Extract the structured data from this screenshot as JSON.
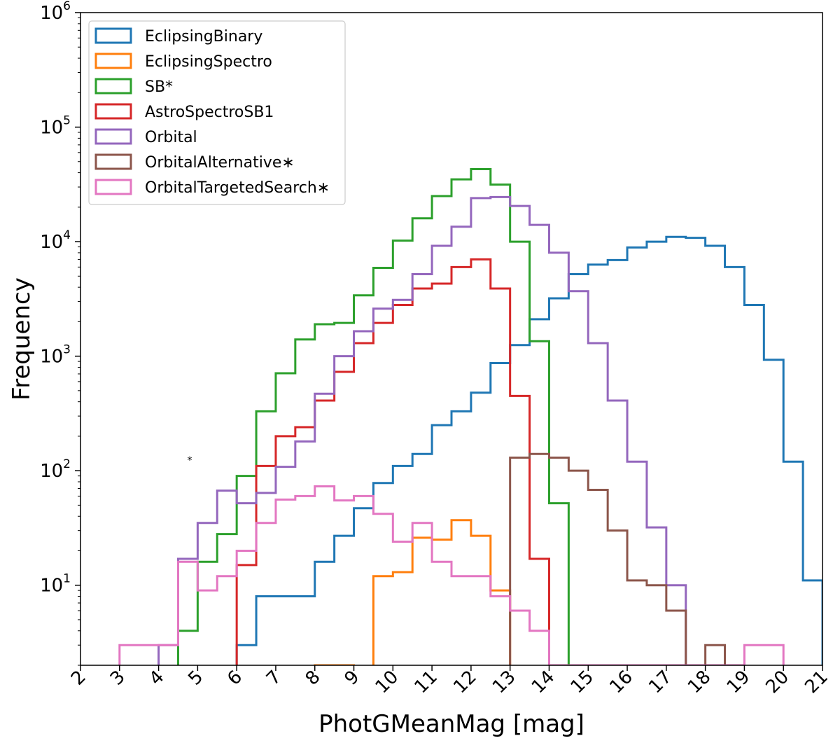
{
  "chart_data": {
    "type": "histogram-step",
    "title": "",
    "xlabel": "PhotGMeanMag [mag]",
    "ylabel": "Frequency",
    "xlim": [
      2,
      21
    ],
    "ylim": [
      2,
      1000000
    ],
    "yscale": "log",
    "bin_width": 0.5,
    "legend_position": "top-left",
    "x_ticks": [
      "2",
      "3",
      "4",
      "5",
      "6",
      "7",
      "8",
      "9",
      "10",
      "11",
      "12",
      "13",
      "14",
      "15",
      "16",
      "17",
      "18",
      "19",
      "20",
      "21"
    ],
    "y_ticks": [
      {
        "base": "10",
        "exp": "1",
        "value": 10
      },
      {
        "base": "10",
        "exp": "2",
        "value": 100
      },
      {
        "base": "10",
        "exp": "3",
        "value": 1000
      },
      {
        "base": "10",
        "exp": "4",
        "value": 10000
      },
      {
        "base": "10",
        "exp": "5",
        "value": 100000
      },
      {
        "base": "10",
        "exp": "6",
        "value": 1000000
      }
    ],
    "series": [
      {
        "name": "EclipsingBinary",
        "color": "#1f77b4",
        "start": 6.0,
        "values": [
          3,
          8,
          8,
          8,
          16,
          27,
          47,
          78,
          110,
          140,
          250,
          330,
          480,
          870,
          1250,
          2100,
          3200,
          5200,
          6300,
          6900,
          8900,
          10000,
          11000,
          10800,
          9200,
          6000,
          2800,
          930,
          120,
          11
        ]
      },
      {
        "name": "EclipsingSpectro",
        "color": "#ff7f0e",
        "start": 8.0,
        "values": [
          2,
          2,
          0,
          12,
          13,
          26,
          25,
          37,
          27,
          9
        ]
      },
      {
        "name": "SB*",
        "color": "#2ca02c",
        "start": 4.5,
        "values": [
          4,
          16,
          28,
          90,
          330,
          710,
          1400,
          1900,
          1950,
          3400,
          5900,
          10200,
          16000,
          25000,
          35000,
          43000,
          31500,
          10000,
          1350,
          52
        ]
      },
      {
        "name": "AstroSpectroSB1",
        "color": "#d62728",
        "start": 6.0,
        "values": [
          15,
          110,
          200,
          240,
          410,
          730,
          1300,
          1950,
          2800,
          3900,
          4300,
          6000,
          7000,
          3900,
          450,
          17
        ]
      },
      {
        "name": "Orbital",
        "color": "#9467bd",
        "start": 4.0,
        "values": [
          3,
          17,
          35,
          67,
          52,
          64,
          108,
          180,
          470,
          1000,
          1650,
          2600,
          3100,
          5200,
          9200,
          13500,
          24000,
          24500,
          20500,
          14000,
          8000,
          3700,
          1300,
          410,
          120,
          32,
          10
        ]
      },
      {
        "name": "OrbitalAlternative∗",
        "color": "#8c564b",
        "start": 13.0,
        "values": [
          130,
          140,
          130,
          100,
          68,
          30,
          11,
          10,
          6,
          2,
          3
        ]
      },
      {
        "name": "OrbitalTargetedSearch∗",
        "color": "#e377c2",
        "start": 3.0,
        "values": [
          3,
          3,
          3,
          16,
          9,
          12,
          20,
          35,
          56,
          60,
          73,
          55,
          60,
          42,
          24,
          35,
          16,
          12,
          12,
          8,
          6,
          4,
          2,
          2,
          2,
          2,
          2,
          2,
          2,
          2,
          2,
          2,
          3,
          3
        ]
      }
    ],
    "annotations": [
      "*"
    ]
  }
}
